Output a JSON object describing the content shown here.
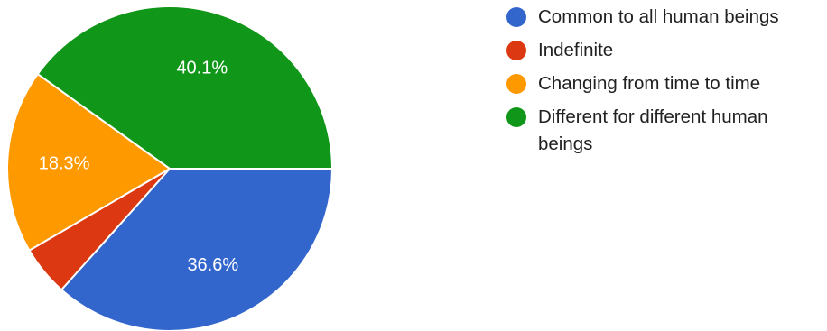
{
  "chart_data": {
    "type": "pie",
    "title": "",
    "start_angle_deg": 0,
    "direction": "clockwise",
    "slices": [
      {
        "label": "Common to all human beings",
        "value": 36.6,
        "display": "36.6%",
        "color": "#3366cc"
      },
      {
        "label": "Indefinite",
        "value": 5.0,
        "display": "",
        "color": "#dc3912"
      },
      {
        "label": "Changing from time to time",
        "value": 18.3,
        "display": "18.3%",
        "color": "#ff9900"
      },
      {
        "label": "Different for different human beings",
        "value": 40.1,
        "display": "40.1%",
        "color": "#109618"
      }
    ],
    "legend_position": "right"
  },
  "legend": {
    "items": [
      {
        "label": "Common to all human beings",
        "color": "#3366cc",
        "icon": "circle-swatch-icon"
      },
      {
        "label": "Indefinite",
        "color": "#dc3912",
        "icon": "circle-swatch-icon"
      },
      {
        "label": "Changing from time to time",
        "color": "#ff9900",
        "icon": "circle-swatch-icon"
      },
      {
        "label": "Different for different human beings",
        "color": "#109618",
        "icon": "circle-swatch-icon"
      }
    ]
  }
}
